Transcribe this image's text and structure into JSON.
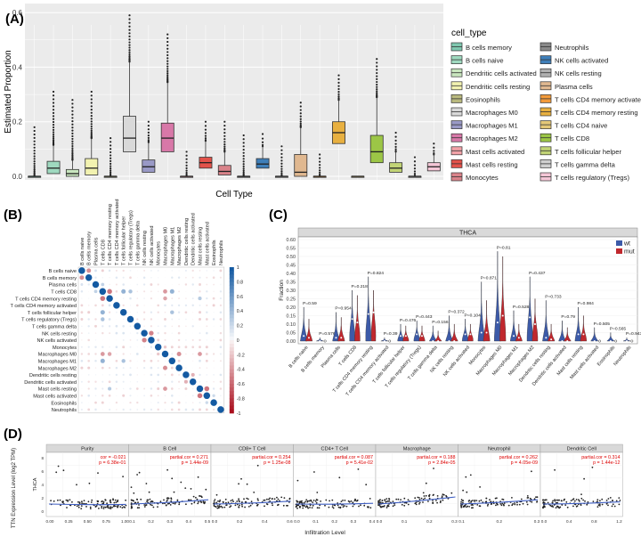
{
  "panels": {
    "A": {
      "label": "(A)"
    },
    "B": {
      "label": "(B)"
    },
    "C": {
      "label": "(C)"
    },
    "D": {
      "label": "(D)"
    }
  },
  "colors": {
    "panel_bg": "#ebebeb",
    "grid": "#ffffff",
    "wt": "#3c5aa8",
    "mut": "#c0272d",
    "corr_pos": "#2a6aa8",
    "corr_neg": "#b2182b",
    "fit_line": "#3f5fc4",
    "strip": "#d9d9d9"
  },
  "chart_data": [
    {
      "type": "box",
      "panel": "A",
      "xlabel": "Cell Type",
      "ylabel": "Estimated Proportion",
      "ylim": [
        0,
        0.62
      ],
      "yticks": [
        "0.0",
        "0.2",
        "0.4",
        "0.6"
      ],
      "grid": true,
      "legend_title": "cell_type",
      "legend_placement": "right",
      "series": [
        {
          "name": "B cells memory",
          "color": "#7fc7af",
          "q1": 0.0,
          "median": 0.0,
          "q3": 0.0,
          "whisker_high": 0.0,
          "outlier_max": 0.18
        },
        {
          "name": "B cells naive",
          "color": "#9fd9bf",
          "q1": 0.01,
          "median": 0.03,
          "q3": 0.055,
          "whisker_high": 0.115,
          "outlier_max": 0.31
        },
        {
          "name": "Dendritic cells activated",
          "color": "#c9e6bf",
          "q1": 0.0,
          "median": 0.01,
          "q3": 0.025,
          "whisker_high": 0.06,
          "outlier_max": 0.28
        },
        {
          "name": "Dendritic cells resting",
          "color": "#f2f2b0",
          "q1": 0.005,
          "median": 0.03,
          "q3": 0.065,
          "whisker_high": 0.14,
          "outlier_max": 0.31
        },
        {
          "name": "Eosinophils",
          "color": "#b9b97e",
          "q1": 0.0,
          "median": 0.0,
          "q3": 0.0,
          "whisker_high": 0.0,
          "outlier_max": 0.14
        },
        {
          "name": "Macrophages M0",
          "color": "#d9d9d9",
          "q1": 0.09,
          "median": 0.14,
          "q3": 0.22,
          "whisker_high": 0.42,
          "outlier_max": 0.59
        },
        {
          "name": "Macrophages M1",
          "color": "#9999c6",
          "q1": 0.015,
          "median": 0.035,
          "q3": 0.06,
          "whisker_high": 0.125,
          "outlier_max": 0.2
        },
        {
          "name": "Macrophages M2",
          "color": "#d878a8",
          "q1": 0.09,
          "median": 0.14,
          "q3": 0.195,
          "whisker_high": 0.345,
          "outlier_max": 0.52
        },
        {
          "name": "Mast cells activated",
          "color": "#f2a2a8",
          "q1": 0.0,
          "median": 0.0,
          "q3": 0.0,
          "whisker_high": 0.0,
          "outlier_max": 0.09
        },
        {
          "name": "Mast cells resting",
          "color": "#e2524a",
          "q1": 0.03,
          "median": 0.05,
          "q3": 0.07,
          "whisker_high": 0.13,
          "outlier_max": 0.2
        },
        {
          "name": "Monocytes",
          "color": "#d9838a",
          "q1": 0.005,
          "median": 0.018,
          "q3": 0.04,
          "whisker_high": 0.09,
          "outlier_max": 0.2
        },
        {
          "name": "Neutrophils",
          "color": "#8a8a8a",
          "q1": 0.0,
          "median": 0.0,
          "q3": 0.0,
          "whisker_high": 0.0,
          "outlier_max": 0.15
        },
        {
          "name": "NK cells activated",
          "color": "#3f7fb9",
          "q1": 0.03,
          "median": 0.045,
          "q3": 0.065,
          "whisker_high": 0.11,
          "outlier_max": 0.155
        },
        {
          "name": "NK cells resting",
          "color": "#b0b0b0",
          "q1": 0.0,
          "median": 0.0,
          "q3": 0.0,
          "whisker_high": 0.0,
          "outlier_max": 0.11
        },
        {
          "name": "Plasma cells",
          "color": "#e0b890",
          "q1": 0.0,
          "median": 0.015,
          "q3": 0.08,
          "whisker_high": 0.18,
          "outlier_max": 0.27
        },
        {
          "name": "T cells CD4 memory activated",
          "color": "#f29a3a",
          "q1": 0.0,
          "median": 0.0,
          "q3": 0.0,
          "whisker_high": 0.0,
          "outlier_max": 0.08
        },
        {
          "name": "T cells CD4 memory resting",
          "color": "#e8b040",
          "q1": 0.12,
          "median": 0.16,
          "q3": 0.2,
          "whisker_high": 0.28,
          "outlier_max": 0.37
        },
        {
          "name": "T cells CD4 naive",
          "color": "#e4c878",
          "q1": 0.0,
          "median": 0.0,
          "q3": 0.0,
          "whisker_high": 0.0,
          "outlier_max": 0.0
        },
        {
          "name": "T cells CD8",
          "color": "#9cc646",
          "q1": 0.05,
          "median": 0.09,
          "q3": 0.15,
          "whisker_high": 0.29,
          "outlier_max": 0.43
        },
        {
          "name": "T cells follicular helper",
          "color": "#c2d476",
          "q1": 0.015,
          "median": 0.03,
          "q3": 0.05,
          "whisker_high": 0.09,
          "outlier_max": 0.16
        },
        {
          "name": "T cells gamma delta",
          "color": "#d0d0d0",
          "q1": 0.0,
          "median": 0.0,
          "q3": 0.0,
          "whisker_high": 0.0,
          "outlier_max": 0.07
        },
        {
          "name": "T cells regulatory (Tregs)",
          "color": "#f4c6d6",
          "q1": 0.02,
          "median": 0.035,
          "q3": 0.05,
          "whisker_high": 0.08,
          "outlier_max": 0.12
        }
      ]
    },
    {
      "type": "heatmap",
      "panel": "B",
      "labels": [
        "B cells naive",
        "B cells memory",
        "Plasma cells",
        "T cells CD8",
        "T cells CD4 memory resting",
        "T cells CD4 memory activated",
        "T cells follicular helper",
        "T cells regulatory (Tregs)",
        "T cells gamma delta",
        "NK cells resting",
        "NK cells activated",
        "Monocytes",
        "Macrophages M0",
        "Macrophages M1",
        "Macrophages M2",
        "Dendritic cells resting",
        "Dendritic cells activated",
        "Mast cells resting",
        "Mast cells activated",
        "Eosinophils",
        "Neutrophils"
      ],
      "colorbar_ticks": [
        "1",
        "0.8",
        "0.6",
        "0.4",
        "0.2",
        "0",
        "-0.2",
        "-0.4",
        "-0.6",
        "-0.8",
        "-1"
      ],
      "range": [
        -1,
        1
      ],
      "selected_correlations": [
        {
          "row": "B cells naive",
          "col": "B cells memory",
          "value": -0.45
        },
        {
          "row": "B cells naive",
          "col": "Plasma cells",
          "value": 0.15
        },
        {
          "row": "B cells memory",
          "col": "Plasma cells",
          "value": 0.1
        },
        {
          "row": "Plasma cells",
          "col": "T cells CD8",
          "value": 0.25
        },
        {
          "row": "T cells CD8",
          "col": "T cells CD4 memory resting",
          "value": -0.55
        },
        {
          "row": "T cells CD8",
          "col": "T cells follicular helper",
          "value": 0.45
        },
        {
          "row": "T cells CD8",
          "col": "T cells regulatory (Tregs)",
          "value": 0.35
        },
        {
          "row": "T cells CD8",
          "col": "Macrophages M1",
          "value": 0.45
        },
        {
          "row": "T cells CD8",
          "col": "Macrophages M0",
          "value": -0.4
        },
        {
          "row": "T cells CD4 memory resting",
          "col": "Macrophages M0",
          "value": -0.35
        },
        {
          "row": "T cells CD4 memory resting",
          "col": "Mast cells resting",
          "value": 0.3
        },
        {
          "row": "T cells follicular helper",
          "col": "Macrophages M1",
          "value": 0.35
        },
        {
          "row": "NK cells resting",
          "col": "NK cells activated",
          "value": -0.5
        },
        {
          "row": "Monocytes",
          "col": "Macrophages M0",
          "value": -0.2
        },
        {
          "row": "Macrophages M0",
          "col": "Macrophages M2",
          "value": -0.45
        },
        {
          "row": "Macrophages M0",
          "col": "Mast cells resting",
          "value": -0.4
        },
        {
          "row": "Macrophages M1",
          "col": "Macrophages M2",
          "value": -0.15
        },
        {
          "row": "Dendritic cells resting",
          "col": "Dendritic cells activated",
          "value": -0.3
        },
        {
          "row": "Mast cells resting",
          "col": "Mast cells activated",
          "value": -0.55
        },
        {
          "row": "Eosinophils",
          "col": "Mast cells activated",
          "value": 0.2
        }
      ]
    },
    {
      "type": "violin",
      "panel": "C",
      "strip_title": "THCA",
      "ylabel": "Fraction",
      "ylim": [
        0,
        0.6
      ],
      "yticks": [
        "0.00",
        "0.05",
        "0.10",
        "0.15",
        "0.20",
        "0.25",
        "0.30",
        "0.35",
        "0.40",
        "0.45",
        "0.50",
        "0.55",
        "0.60"
      ],
      "legend": [
        "wt",
        "mut"
      ],
      "legend_placement": "top-right",
      "categories": [
        "B cells naive",
        "B cells memory",
        "Plasma cells",
        "T cells CD8",
        "T cells CD4 memory resting",
        "T cells CD4 memory activated",
        "T cells follicular helper",
        "T cells regulatory (Tregs)",
        "T cells gamma delta",
        "NK cells resting",
        "NK cells activated",
        "Monocytes",
        "Macrophages M0",
        "Macrophages M1",
        "Macrophages M2",
        "Dendritic cells resting",
        "Dendritic cells activated",
        "Mast cells resting",
        "Mast cells activated",
        "Eosinophils",
        "Neutrophils"
      ],
      "pvalues": [
        "P=0.59",
        "P=0.576",
        "P=0.954",
        "P=0.218",
        "P=0.824",
        "P=0.39",
        "P=0.476",
        "P=0.443",
        "P=0.156",
        "P=0.372",
        "P=0.104",
        "P=0.871",
        "P=0.81",
        "P=0.528",
        "P=0.437",
        "P=0.733",
        "P=0.79",
        "P=0.984",
        "P=0.505",
        "P=0.565",
        "P=0.943"
      ],
      "series": [
        {
          "name": "wt",
          "max": [
            0.2,
            0.02,
            0.17,
            0.3,
            0.38,
            0.02,
            0.1,
            0.12,
            0.09,
            0.15,
            0.13,
            0.35,
            0.53,
            0.18,
            0.38,
            0.24,
            0.12,
            0.2,
            0.08,
            0.05,
            0.02
          ],
          "median": [
            0.03,
            0.0,
            0.02,
            0.13,
            0.16,
            0.0,
            0.03,
            0.04,
            0.0,
            0.0,
            0.04,
            0.05,
            0.11,
            0.03,
            0.14,
            0.02,
            0.0,
            0.04,
            0.0,
            0.0,
            0.0
          ]
        },
        {
          "name": "mut",
          "max": [
            0.13,
            0.0,
            0.14,
            0.27,
            0.3,
            0.0,
            0.09,
            0.09,
            0.06,
            0.1,
            0.1,
            0.24,
            0.5,
            0.1,
            0.25,
            0.1,
            0.08,
            0.15,
            0.0,
            0.0,
            0.0
          ],
          "median": [
            0.02,
            0.0,
            0.02,
            0.11,
            0.17,
            0.0,
            0.03,
            0.03,
            0.0,
            0.0,
            0.04,
            0.05,
            0.15,
            0.02,
            0.1,
            0.01,
            0.0,
            0.04,
            0.0,
            0.0,
            0.0
          ]
        }
      ]
    },
    {
      "type": "scatter",
      "panel": "D",
      "ylabel": "TTN Expression Level (log2 TPM)",
      "row_label": "THCA",
      "xlabel": "Infiltration Level",
      "facets": [
        {
          "title": "Purity",
          "stat": "cor = -0.021",
          "p": "p = 6.38e-01",
          "xlim": [
            0,
            1.05
          ],
          "xticks": [
            "0.00",
            "0.25",
            "0.50",
            "0.75",
            "1.00"
          ],
          "slope": -0.1
        },
        {
          "title": "B Cell",
          "stat": "partial.cor = 0.271",
          "p": "p = 1.44e-09",
          "xlim": [
            0,
            0.55
          ],
          "xticks": [
            "0.1",
            "0.2",
            "0.3",
            "0.4",
            "0.5"
          ],
          "slope": 1.2
        },
        {
          "title": "CD8+ T Cell",
          "stat": "partial.cor = 0.254",
          "p": "p = 1.25e-08",
          "xlim": [
            0,
            0.85
          ],
          "xticks": [
            "0.0",
            "0.2",
            "0.4",
            "0.6"
          ],
          "slope": 0.8
        },
        {
          "title": "CD4+ T Cell",
          "stat": "partial.cor = 0.087",
          "p": "p = 5.41e-02",
          "xlim": [
            0,
            0.45
          ],
          "xticks": [
            "0.0",
            "0.1",
            "0.2",
            "0.3",
            "0.4"
          ],
          "slope": 0.2
        },
        {
          "title": "Macrophage",
          "stat": "partial.cor = 0.188",
          "p": "p = 2.84e-05",
          "xlim": [
            0,
            0.33
          ],
          "xticks": [
            "0.0",
            "0.1",
            "0.2",
            "0.3"
          ],
          "slope": 2.0
        },
        {
          "title": "Neutrophil",
          "stat": "partial.cor = 0.262",
          "p": "p = 4.05e-09",
          "xlim": [
            0.05,
            0.3
          ],
          "xticks": [
            "0.1",
            "0.2",
            "0.3"
          ],
          "slope": 1.2
        },
        {
          "title": "Dendritic Cell",
          "stat": "partial.cor = 0.314",
          "p": "p = 1.44e-12",
          "xlim": [
            0,
            1.25
          ],
          "xticks": [
            "0.0",
            "0.4",
            "0.8",
            "1.2"
          ],
          "slope": 0.6
        }
      ]
    }
  ]
}
